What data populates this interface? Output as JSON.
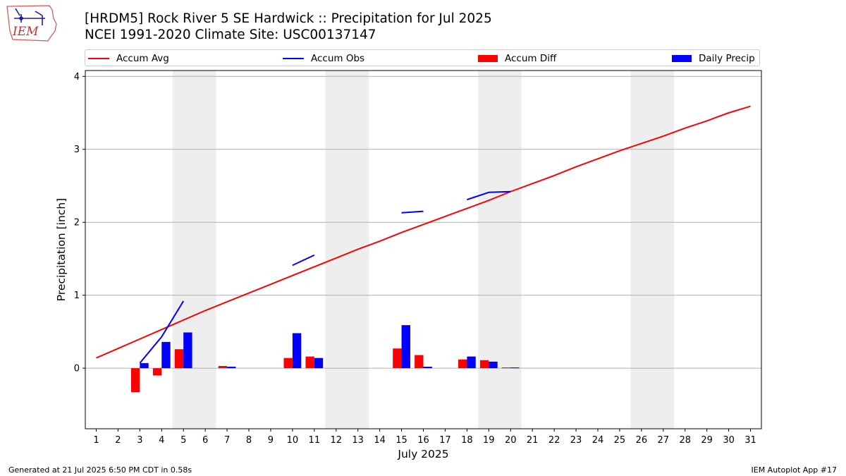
{
  "header": {
    "title_line1": "[HRDM5] Rock River 5 SE Hardwick :: Precipitation for Jul 2025",
    "title_line2": "NCEI 1991-2020 Climate Site: USC00137147"
  },
  "logo": {
    "text": "IEM"
  },
  "footer": {
    "left": "Generated at 21 Jul 2025 6:50 PM CDT in 0.58s",
    "right": "IEM Autoplot App #17"
  },
  "colors": {
    "avg": "#ff0000",
    "obs": "#0000ff",
    "diff": "#ff0000",
    "daily": "#0000ff",
    "shade": "#eeeeee",
    "grid": "#b0b0b0"
  },
  "chart_data": {
    "type": "bar",
    "xlabel": "July 2025",
    "ylabel": "Precipitation [inch]",
    "ylim": [
      -0.83,
      4.08
    ],
    "yticks": [
      0,
      1,
      2,
      3,
      4
    ],
    "x": [
      1,
      2,
      3,
      4,
      5,
      6,
      7,
      8,
      9,
      10,
      11,
      12,
      13,
      14,
      15,
      16,
      17,
      18,
      19,
      20,
      21,
      22,
      23,
      24,
      25,
      26,
      27,
      28,
      29,
      30,
      31
    ],
    "weekend_shading": [
      [
        5,
        6
      ],
      [
        12,
        13
      ],
      [
        19,
        20
      ],
      [
        26,
        27
      ]
    ],
    "legend": [
      "Accum Avg",
      "Accum Obs",
      "Accum Diff",
      "Daily Precip"
    ],
    "series": [
      {
        "name": "Accum Avg",
        "kind": "line",
        "values": [
          0.14,
          0.27,
          0.4,
          0.53,
          0.66,
          0.79,
          0.91,
          1.03,
          1.15,
          1.27,
          1.39,
          1.51,
          1.63,
          1.74,
          1.86,
          1.97,
          2.08,
          2.19,
          2.3,
          2.42,
          2.53,
          2.64,
          2.76,
          2.87,
          2.98,
          3.08,
          3.18,
          3.29,
          3.39,
          3.5,
          3.59
        ]
      },
      {
        "name": "Accum Obs",
        "kind": "line",
        "segments": [
          {
            "x": [
              3,
              4,
              5
            ],
            "values": [
              0.07,
              0.43,
              0.92
            ]
          },
          {
            "x": [
              10,
              11
            ],
            "values": [
              1.41,
              1.55
            ]
          },
          {
            "x": [
              15,
              16
            ],
            "values": [
              2.13,
              2.15
            ]
          },
          {
            "x": [
              18,
              19,
              20
            ],
            "values": [
              2.31,
              2.41,
              2.42
            ]
          }
        ]
      },
      {
        "name": "Accum Diff",
        "kind": "bar",
        "x": [
          3,
          4,
          5,
          7,
          10,
          11,
          15,
          16,
          18,
          19,
          20
        ],
        "values": [
          -0.33,
          -0.1,
          0.26,
          0.03,
          0.14,
          0.16,
          0.27,
          0.18,
          0.12,
          0.11,
          0.01
        ]
      },
      {
        "name": "Daily Precip",
        "kind": "bar",
        "x": [
          3,
          4,
          5,
          7,
          10,
          11,
          15,
          16,
          18,
          19,
          20
        ],
        "values": [
          0.07,
          0.36,
          0.49,
          0.02,
          0.48,
          0.14,
          0.59,
          0.02,
          0.16,
          0.09,
          0.01
        ]
      }
    ]
  }
}
